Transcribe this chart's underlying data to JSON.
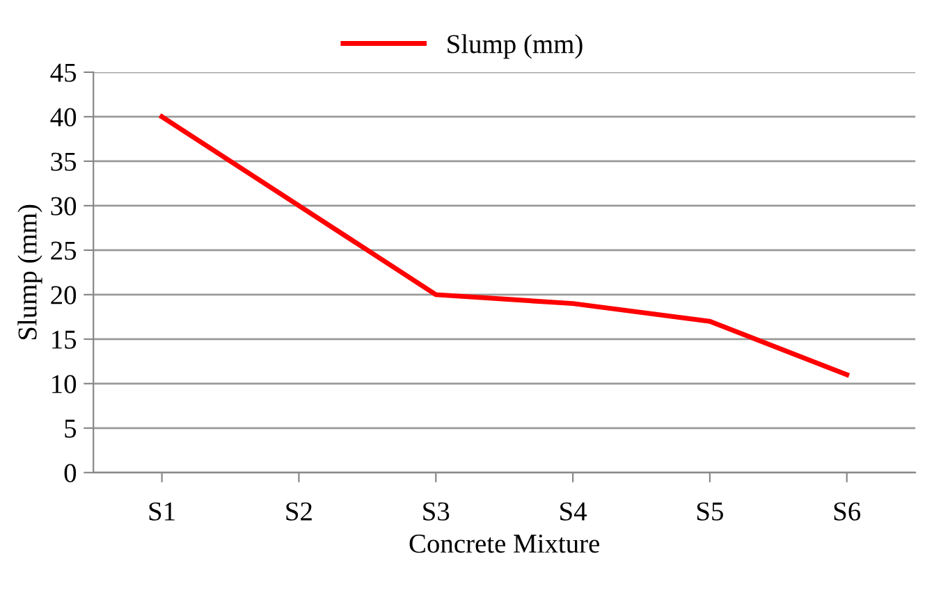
{
  "chart_data": {
    "type": "line",
    "xlabel": "Concrete Mixture",
    "ylabel": "Slump (mm)",
    "categories": [
      "S1",
      "S2",
      "S3",
      "S4",
      "S5",
      "S6"
    ],
    "series": [
      {
        "name": "Slump (mm)",
        "color": "#ff0000",
        "values": [
          40,
          30,
          20,
          19,
          17,
          11
        ]
      }
    ],
    "ylim": [
      0,
      45
    ],
    "yticks": [
      0,
      5,
      10,
      15,
      20,
      25,
      30,
      35,
      40,
      45
    ],
    "grid": "y",
    "legend": "top",
    "marker": "none",
    "line_style": "solid"
  }
}
